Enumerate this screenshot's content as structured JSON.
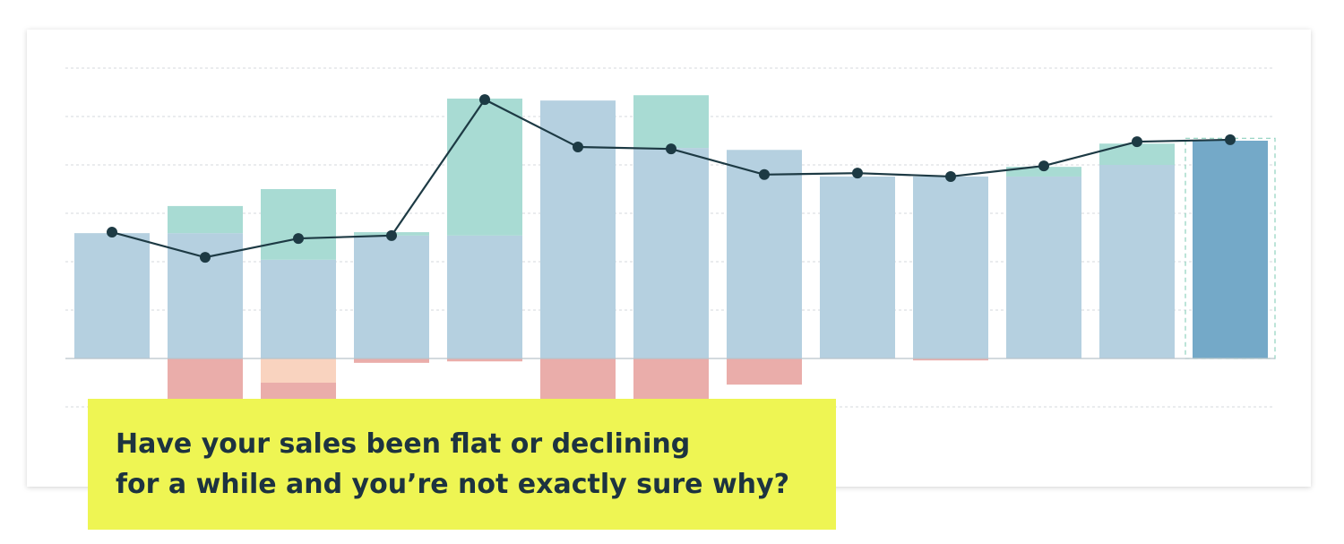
{
  "chart_data": {
    "type": "bar",
    "ylim": [
      -1,
      6
    ],
    "yticks": [
      -1,
      0,
      1,
      2,
      3,
      4,
      5,
      6
    ],
    "grid": true,
    "series": [
      {
        "kind": "bar",
        "color": "#b5d0e0",
        "values": [
          2.59,
          2.59,
          2.04,
          2.54,
          2.54,
          5.33,
          4.35,
          4.31,
          3.76,
          3.76,
          3.76,
          4.0,
          null
        ]
      },
      {
        "kind": "bar",
        "color": "#74a9c8",
        "values": [
          null,
          null,
          null,
          null,
          null,
          null,
          null,
          null,
          null,
          null,
          null,
          null,
          4.5
        ]
      },
      {
        "kind": "bar",
        "color": "#a8dbd3",
        "values": [
          null,
          0.56,
          1.46,
          0.07,
          2.83,
          null,
          1.09,
          null,
          null,
          null,
          0.2,
          0.44,
          null
        ]
      },
      {
        "kind": "bar",
        "color": "#f9d3bf",
        "values": [
          null,
          null,
          -0.5,
          null,
          null,
          null,
          null,
          null,
          null,
          null,
          null,
          null,
          null
        ]
      },
      {
        "kind": "bar",
        "color": "#eaadaa",
        "values": [
          null,
          -0.9,
          -0.5,
          -0.09,
          -0.06,
          -0.9,
          -0.9,
          -0.54,
          null,
          -0.04,
          null,
          null,
          null
        ]
      },
      {
        "kind": "line",
        "color": "#1d3a44",
        "values": [
          2.61,
          2.09,
          2.48,
          2.54,
          5.35,
          4.37,
          4.33,
          3.8,
          3.83,
          3.76,
          3.98,
          4.48,
          4.52
        ]
      }
    ],
    "outline": {
      "index": 12,
      "value": 4.55,
      "color": "#8fd1bf"
    },
    "callout": [
      "Have your sales been flat or declining",
      "for a while and you’re not exactly sure why?"
    ]
  }
}
